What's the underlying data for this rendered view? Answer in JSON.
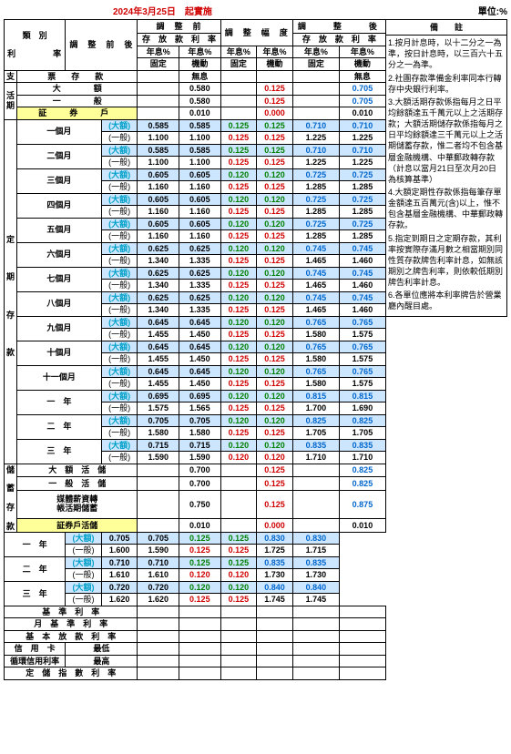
{
  "title_date": "2024年3月25日　起實施",
  "unit": "單位:%",
  "headers": {
    "type": "類　別",
    "before_after": "調　整　前　後",
    "rate_lbl": "利　　　　率",
    "before": "調　整　前",
    "range": "調　整　幅　度",
    "after": "調　　整　　後",
    "dep_rate": "存　放　款　利　率",
    "yr": "年息%",
    "fixed": "固定",
    "float": "機動",
    "notes": "備註"
  },
  "cat": {
    "zhi": "支",
    "piao": "票　存　款",
    "huo": "活",
    "qi1": "期",
    "da_e": "大　　　　額",
    "yiban": "一　　　　般",
    "zheng": "証　券　戶",
    "ding": "定",
    "qi2": "期",
    "cun": "存",
    "kuan": "款",
    "chu": "儲",
    "xu": "蓄",
    "cun2": "存",
    "kuan2": "款"
  },
  "periods": [
    "一個月",
    "二個月",
    "三個月",
    "四個月",
    "五個月",
    "六個月",
    "七個月",
    "八個月",
    "九個月",
    "十個月",
    "十一個月",
    "一　年",
    "二　年",
    "三　年"
  ],
  "sub_da": "(大額)",
  "sub_yi": "(一般)",
  "wuxi": "無息",
  "huo_rows": [
    {
      "k": "da",
      "b": "0.580",
      "r": "0.125",
      "a": "0.705"
    },
    {
      "k": "yi",
      "b": "0.580",
      "r": "0.125",
      "a": "0.705"
    },
    {
      "k": "zh",
      "b": "0.010",
      "r": "0.000",
      "a": "0.010"
    }
  ],
  "ding_rows": [
    {
      "da": [
        "0.585",
        "0.585",
        "0.125",
        "0.125",
        "0.710",
        "0.710"
      ],
      "yi": [
        "1.100",
        "1.100",
        "0.125",
        "0.125",
        "1.225",
        "1.225"
      ]
    },
    {
      "da": [
        "0.585",
        "0.585",
        "0.125",
        "0.125",
        "0.710",
        "0.710"
      ],
      "yi": [
        "1.100",
        "1.100",
        "0.125",
        "0.125",
        "1.225",
        "1.225"
      ]
    },
    {
      "da": [
        "0.605",
        "0.605",
        "0.120",
        "0.120",
        "0.725",
        "0.725"
      ],
      "yi": [
        "1.160",
        "1.160",
        "0.125",
        "0.125",
        "1.285",
        "1.285"
      ]
    },
    {
      "da": [
        "0.605",
        "0.605",
        "0.120",
        "0.120",
        "0.725",
        "0.725"
      ],
      "yi": [
        "1.160",
        "1.160",
        "0.125",
        "0.125",
        "1.285",
        "1.285"
      ]
    },
    {
      "da": [
        "0.605",
        "0.605",
        "0.120",
        "0.120",
        "0.725",
        "0.725"
      ],
      "yi": [
        "1.160",
        "1.160",
        "0.125",
        "0.125",
        "1.285",
        "1.285"
      ]
    },
    {
      "da": [
        "0.625",
        "0.625",
        "0.120",
        "0.120",
        "0.745",
        "0.745"
      ],
      "yi": [
        "1.340",
        "1.335",
        "0.125",
        "0.125",
        "1.465",
        "1.460"
      ]
    },
    {
      "da": [
        "0.625",
        "0.625",
        "0.120",
        "0.120",
        "0.745",
        "0.745"
      ],
      "yi": [
        "1.340",
        "1.335",
        "0.125",
        "0.125",
        "1.465",
        "1.460"
      ]
    },
    {
      "da": [
        "0.625",
        "0.625",
        "0.120",
        "0.120",
        "0.745",
        "0.745"
      ],
      "yi": [
        "1.340",
        "1.335",
        "0.125",
        "0.125",
        "1.465",
        "1.460"
      ]
    },
    {
      "da": [
        "0.645",
        "0.645",
        "0.120",
        "0.120",
        "0.765",
        "0.765"
      ],
      "yi": [
        "1.455",
        "1.450",
        "0.125",
        "0.125",
        "1.580",
        "1.575"
      ]
    },
    {
      "da": [
        "0.645",
        "0.645",
        "0.120",
        "0.120",
        "0.765",
        "0.765"
      ],
      "yi": [
        "1.455",
        "1.450",
        "0.125",
        "0.125",
        "1.580",
        "1.575"
      ]
    },
    {
      "da": [
        "0.645",
        "0.645",
        "0.120",
        "0.120",
        "0.765",
        "0.765"
      ],
      "yi": [
        "1.455",
        "1.450",
        "0.125",
        "0.125",
        "1.580",
        "1.575"
      ]
    },
    {
      "da": [
        "0.695",
        "0.695",
        "0.120",
        "0.120",
        "0.815",
        "0.815"
      ],
      "yi": [
        "1.575",
        "1.565",
        "0.125",
        "0.125",
        "1.700",
        "1.690"
      ]
    },
    {
      "da": [
        "0.705",
        "0.705",
        "0.120",
        "0.120",
        "0.825",
        "0.825"
      ],
      "yi": [
        "1.580",
        "1.580",
        "0.125",
        "0.125",
        "1.705",
        "1.705"
      ]
    },
    {
      "da": [
        "0.715",
        "0.715",
        "0.120",
        "0.120",
        "0.835",
        "0.835"
      ],
      "yi": [
        "1.590",
        "1.590",
        "0.120",
        "0.120",
        "1.710",
        "1.710"
      ]
    }
  ],
  "chu_top": [
    {
      "lab": "大　額　活　儲",
      "b": "0.700",
      "r": "0.125",
      "a": "0.825"
    },
    {
      "lab": "一　般　活　儲",
      "b": "0.700",
      "r": "0.125",
      "a": "0.825"
    },
    {
      "lab": "媒體薪資轉帳活期儲蓄",
      "b": "0.750",
      "r": "0.125",
      "a": "0.875",
      "two": true
    },
    {
      "lab": "証券戶活儲",
      "b": "0.010",
      "r": "0.000",
      "a": "0.010",
      "yel": true
    }
  ],
  "chu_years": [
    "一　年",
    "二　年",
    "三　年"
  ],
  "chu_rows": [
    {
      "da": [
        "0.705",
        "0.705",
        "0.125",
        "0.125",
        "0.830",
        "0.830"
      ],
      "yi": [
        "1.600",
        "1.590",
        "0.125",
        "0.125",
        "1.725",
        "1.715"
      ]
    },
    {
      "da": [
        "0.710",
        "0.710",
        "0.125",
        "0.125",
        "0.835",
        "0.835"
      ],
      "yi": [
        "1.610",
        "1.610",
        "0.120",
        "0.120",
        "1.730",
        "1.730"
      ]
    },
    {
      "da": [
        "0.720",
        "0.720",
        "0.120",
        "0.120",
        "0.840",
        "0.840"
      ],
      "yi": [
        "1.620",
        "1.620",
        "0.125",
        "0.125",
        "1.745",
        "1.745"
      ]
    }
  ],
  "bottom": [
    "基　準　利　率",
    "月　基　準　利　率",
    "基　本　放　款　利　率"
  ],
  "card": {
    "l1": "信　用　卡",
    "l2": "循環信用利率",
    "r1": "最低",
    "r2": "最高"
  },
  "last": "定　儲　指　數　利　率",
  "notes_list": [
    "1.按月計息時，以十二分之一為準，按日計息時，以三百六十五分之一為準。",
    "2.社團存款準備金利率同本行轉存中央銀行利率。",
    "3.大額活期存款係指每月之日平均餘額達五千萬元以上之活期存款；大額活期儲存款係指每月之日平均餘額達三千萬元以上之活期儲蓄存款，惟二者均不包含基層金融機構、中華郵政轉存款（計息以當月21日至次月20日為核算基準）",
    "4.大額定期性存款係指每筆存單金額達五百萬元(含)以上，惟不包含基層金融機構、中華郵政轉存款。",
    "5.指定到期日之定期存款，其利率按實際存滿月數之相當期別同性質存款牌告利率計息，如無該期別之牌告利率，則依較低期別牌告利率計息。",
    "6.各單位應將本利率牌告於營業廳內醒目處。"
  ]
}
